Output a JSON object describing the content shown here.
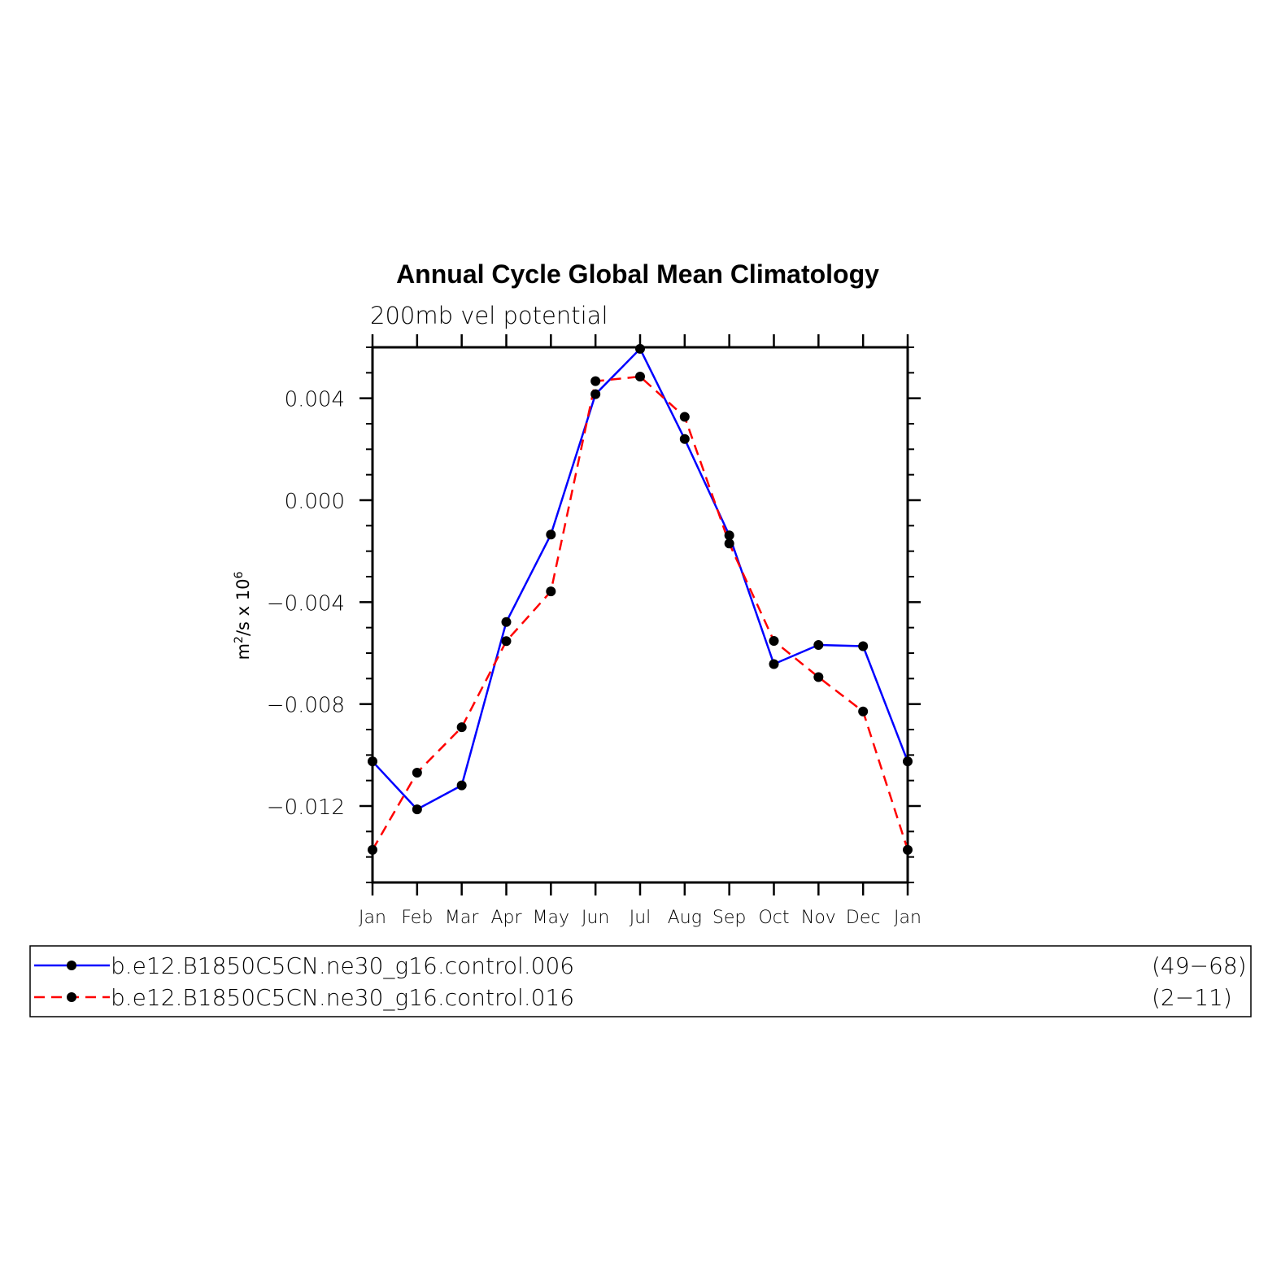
{
  "chart_data": {
    "type": "line",
    "title": "Annual Cycle Global Mean Climatology",
    "subtitle": "200mb vel potential",
    "ylabel": {
      "base": "m",
      "exp1": "2",
      "mid": "/s x 10",
      "exp2": "6"
    },
    "xlabel": "",
    "categories": [
      "Jan",
      "Feb",
      "Mar",
      "Apr",
      "May",
      "Jun",
      "Jul",
      "Aug",
      "Sep",
      "Oct",
      "Nov",
      "Dec",
      "Jan"
    ],
    "ylim": [
      -0.015,
      0.006
    ],
    "yticks": [
      {
        "value": 0.004,
        "label": "0.004"
      },
      {
        "value": 0.0,
        "label": "0.000"
      },
      {
        "value": -0.004,
        "label": "−0.004"
      },
      {
        "value": -0.008,
        "label": "−0.008"
      },
      {
        "value": -0.012,
        "label": "−0.012"
      }
    ],
    "series": [
      {
        "name": "b.e12.B1850C5CN.ne30_g16.control.006",
        "years": "(49−68)",
        "color": "#0000ff",
        "dash": "solid",
        "values": [
          -0.01025,
          -0.01213,
          -0.01119,
          -0.00478,
          -0.00135,
          0.00416,
          0.00594,
          0.0024,
          -0.00138,
          -0.00643,
          -0.00568,
          -0.00573,
          -0.01025
        ]
      },
      {
        "name": "b.e12.B1850C5CN.ne30_g16.control.016",
        "years": "(2−11)",
        "color": "#ff0000",
        "dash": "dashed",
        "values": [
          -0.01372,
          -0.01069,
          -0.00891,
          -0.00553,
          -0.00358,
          0.00467,
          0.00485,
          0.00327,
          -0.0017,
          -0.00552,
          -0.00694,
          -0.00829,
          -0.01372
        ]
      }
    ],
    "marker_color": "#000000",
    "grid": false
  }
}
